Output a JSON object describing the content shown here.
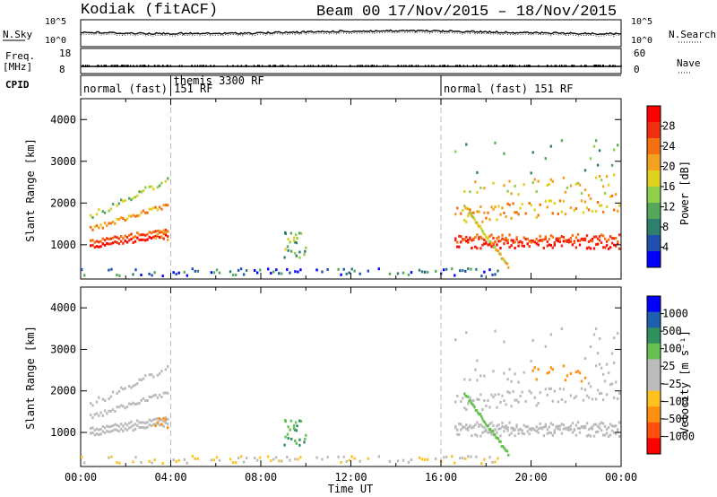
{
  "header": {
    "radar": "Kodiak (fitACF)",
    "beam": "Beam 00",
    "dates": "17/Nov/2015 – 18/Nov/2015"
  },
  "top_panels": {
    "nsky_label": "N.Sky",
    "nsearch_label": "N.Search",
    "freq_label_line1": "Freq.",
    "freq_label_line2": "[MHz]",
    "nave_label": "Nave",
    "cpid_label": "CPID",
    "noise_ticks_left": [
      "10^5",
      "10^0"
    ],
    "noise_ticks_right": [
      "10^5",
      "10^0"
    ],
    "freq_ticks_left": [
      "18",
      "8"
    ],
    "nave_ticks_right": [
      "60",
      "0"
    ],
    "cpid_segments": [
      {
        "label": "normal (fast) 151 RF",
        "start_hour": 0
      },
      {
        "label": "themis 3300 RF",
        "start_hour": 4
      },
      {
        "label": "normal (fast) 151 RF",
        "start_hour": 16
      }
    ]
  },
  "colors": {
    "power_scale": [
      "#0000ff",
      "#1f4faf",
      "#2f7f6f",
      "#55a85a",
      "#8fd04a",
      "#e0d020",
      "#f4a020",
      "#f47010",
      "#f03010",
      "#ff0000"
    ],
    "velocity_scale": [
      "#ff0000",
      "#ff5010",
      "#ff9010",
      "#ffc020",
      "#bbbbbb",
      "#bbbbbb",
      "#66c050",
      "#2f8f5f",
      "#1f5faf",
      "#0000ff"
    ]
  },
  "chart_data": [
    {
      "type": "heatmap",
      "name": "power-panel",
      "xlabel": "Time UT",
      "ylabel": "Slant Range [km]",
      "xlim_hours": [
        0,
        24
      ],
      "ylim": [
        180,
        4500
      ],
      "x_ticks": [
        "00:00",
        "04:00",
        "08:00",
        "12:00",
        "16:00",
        "20:00",
        "00:00"
      ],
      "y_ticks": [
        1000,
        2000,
        3000,
        4000
      ],
      "colorbar": {
        "label": "Power [dB]",
        "ticks": [
          "4",
          "8",
          "12",
          "16",
          "20",
          "24",
          "28"
        ]
      },
      "dashed_vlines_hours": [
        4,
        16
      ]
    },
    {
      "type": "heatmap",
      "name": "velocity-panel",
      "xlabel": "Time UT",
      "ylabel": "Slant Range [km]",
      "xlim_hours": [
        0,
        24
      ],
      "ylim": [
        180,
        4500
      ],
      "x_ticks": [
        "00:00",
        "04:00",
        "08:00",
        "12:00",
        "16:00",
        "20:00",
        "00:00"
      ],
      "y_ticks": [
        1000,
        2000,
        3000,
        4000
      ],
      "colorbar": {
        "label": "Velocity [m s⁻¹]",
        "ticks": [
          "1000",
          "500",
          "100",
          "25",
          "−25",
          "−100",
          "−500",
          "−1000"
        ]
      },
      "dashed_vlines_hours": [
        4,
        16
      ]
    }
  ]
}
